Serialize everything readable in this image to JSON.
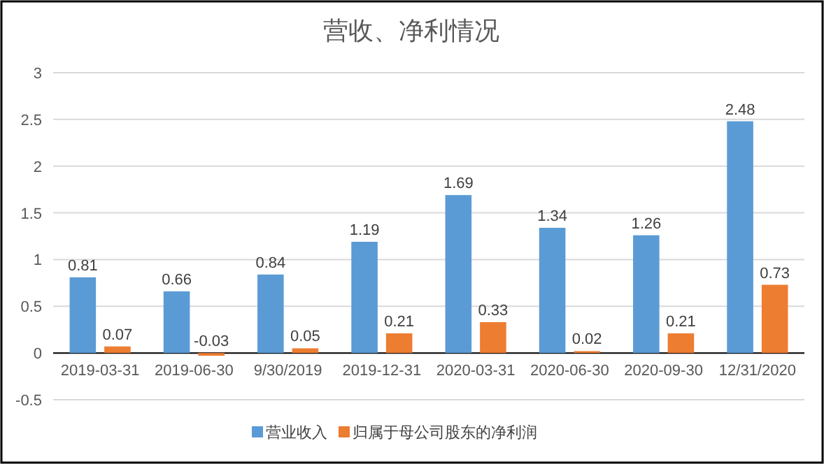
{
  "chart_data": {
    "type": "bar",
    "title": "营收、净利情况",
    "categories": [
      "2019-03-31",
      "2019-06-30",
      "9/30/2019",
      "2019-12-31",
      "2020-03-31",
      "2020-06-30",
      "2020-09-30",
      "12/31/2020"
    ],
    "series": [
      {
        "name": "营业收入",
        "color": "#5b9bd5",
        "values": [
          0.81,
          0.66,
          0.84,
          1.19,
          1.69,
          1.34,
          1.26,
          2.48
        ]
      },
      {
        "name": "归属于母公司股东的净利润",
        "color": "#ed7d31",
        "values": [
          0.07,
          -0.03,
          0.05,
          0.21,
          0.33,
          0.02,
          0.21,
          0.73
        ]
      }
    ],
    "ylim": [
      -0.5,
      3
    ],
    "yticks": [
      -0.5,
      0,
      0.5,
      1,
      1.5,
      2,
      2.5,
      3
    ],
    "grid": "y",
    "data_labels": true,
    "legend": "bottom"
  }
}
